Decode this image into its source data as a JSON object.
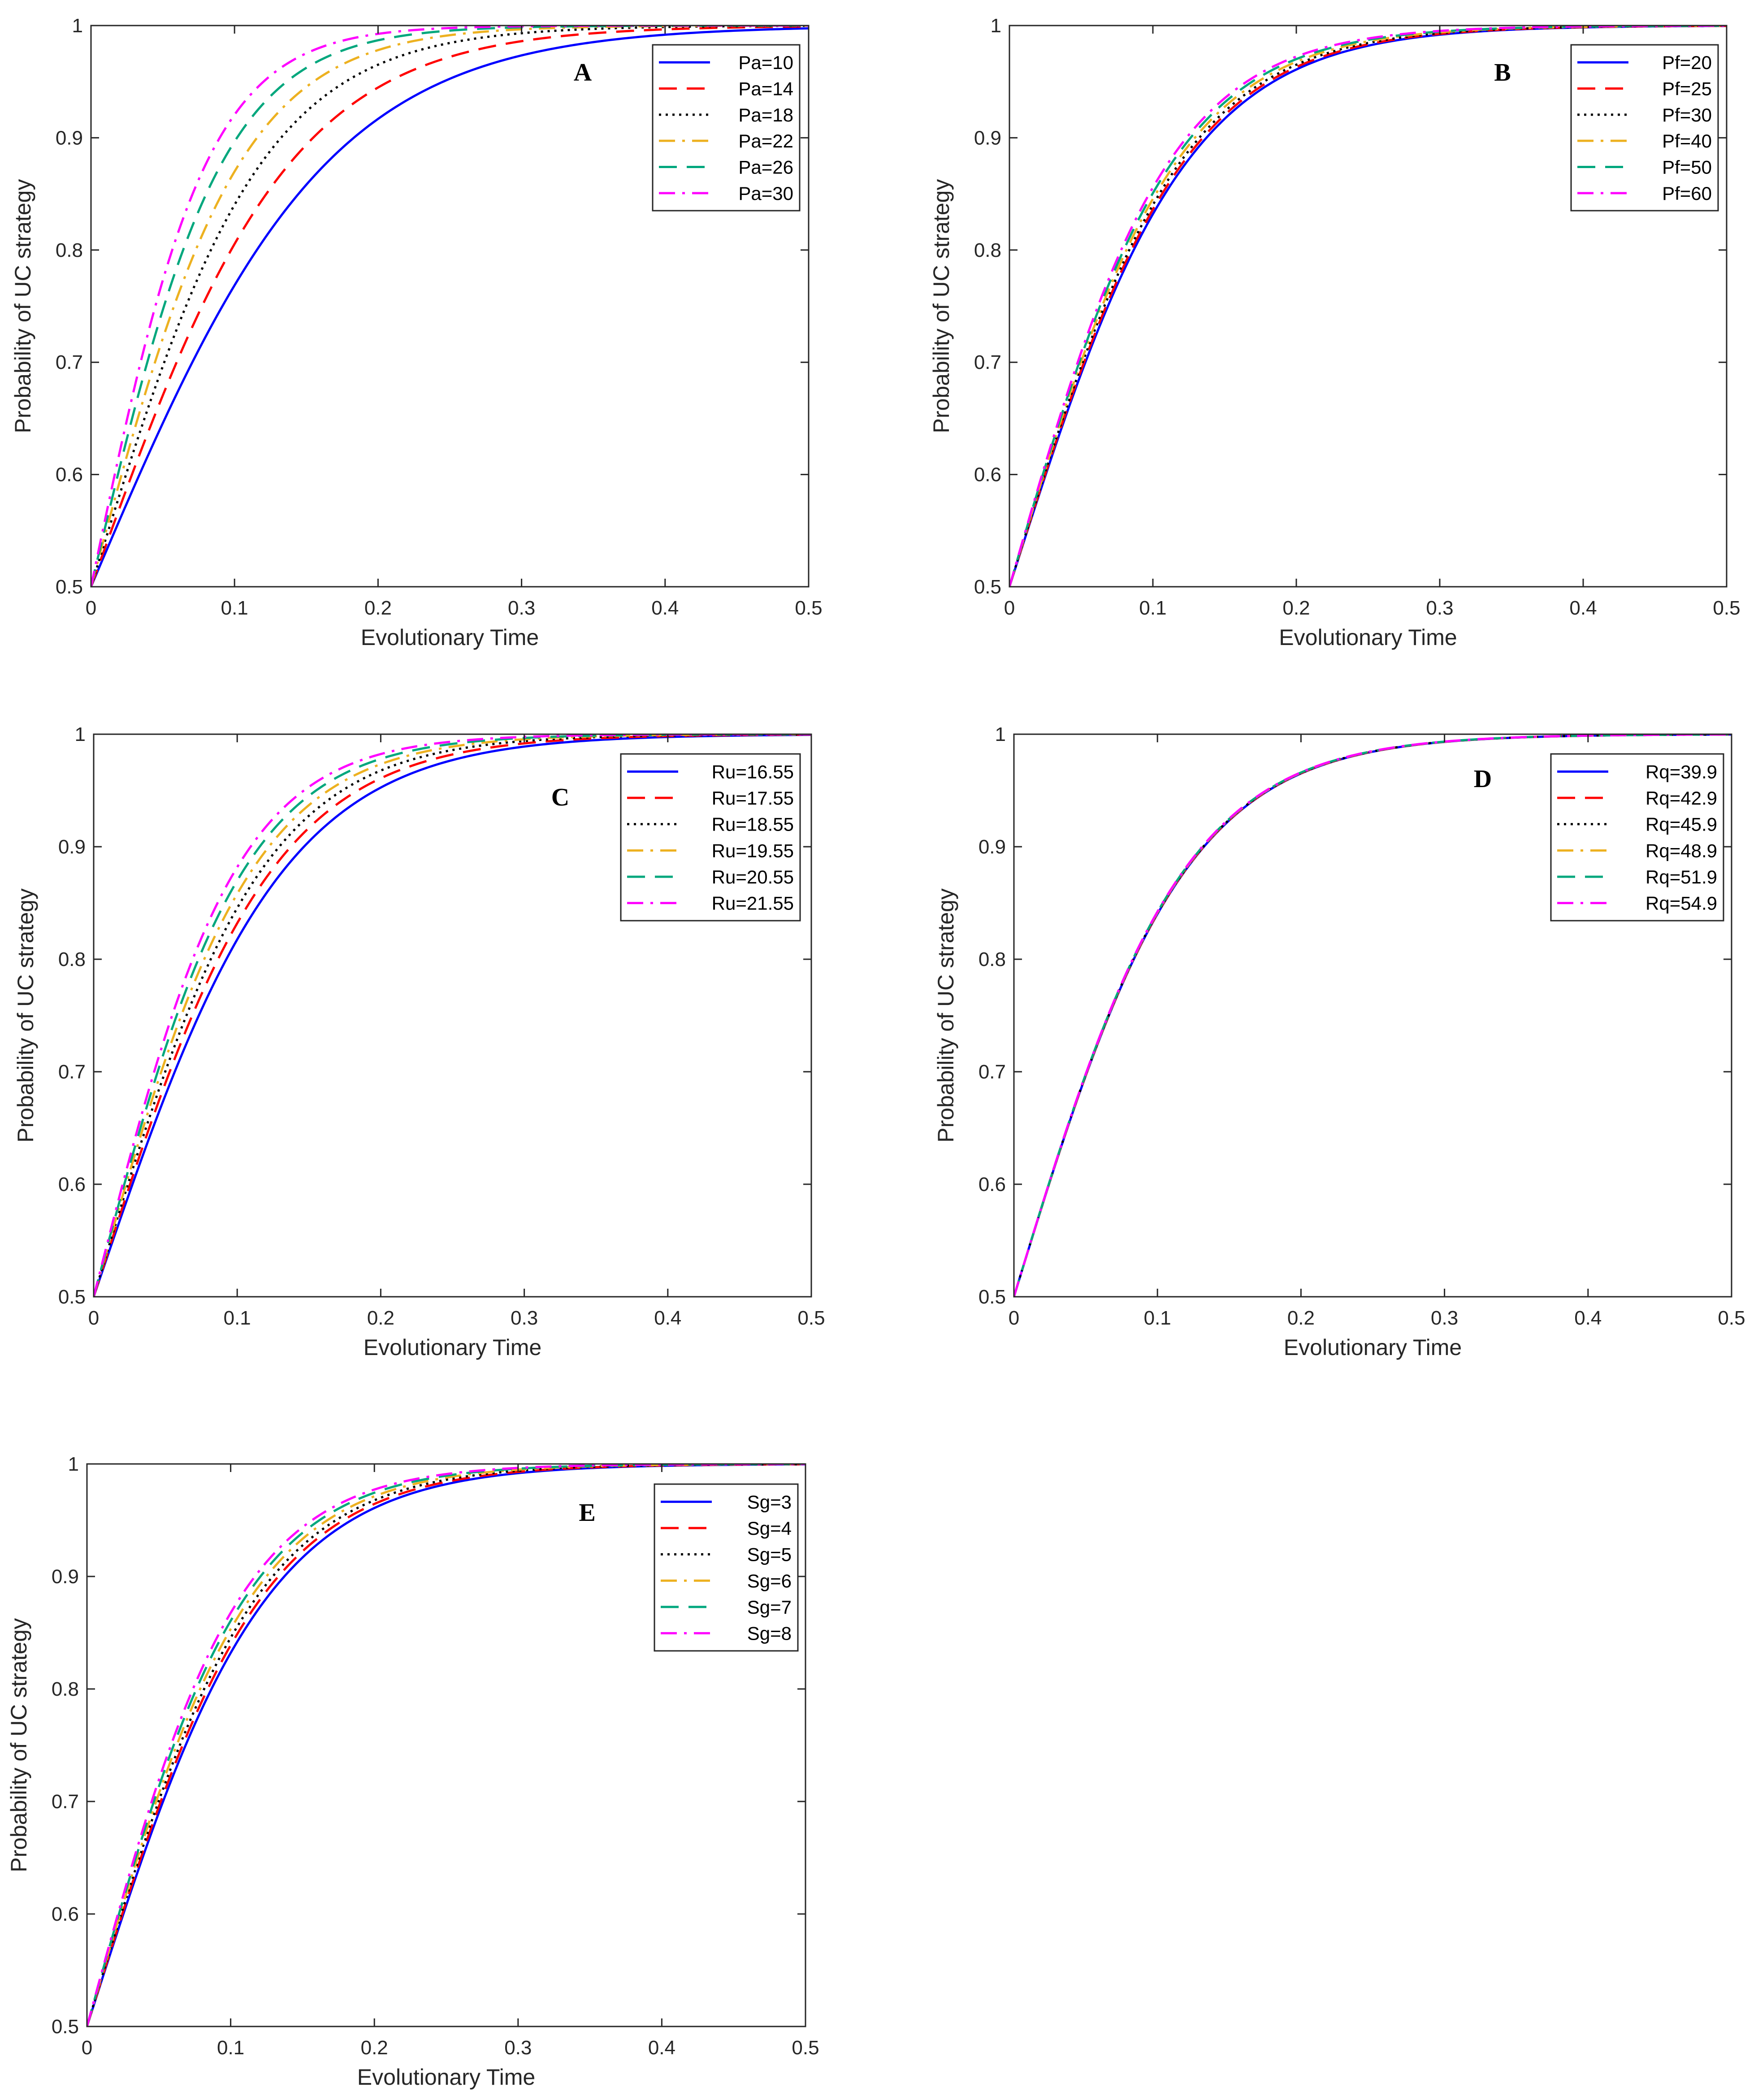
{
  "chart_data": [
    {
      "panel": "A",
      "type": "line",
      "xlabel": "Evolutionary Time",
      "ylabel": "Probability of UC strategy",
      "xlim": [
        0,
        0.5
      ],
      "ylim": [
        0.5,
        1
      ],
      "xticks": [
        "0",
        "0.1",
        "0.2",
        "0.3",
        "0.4",
        "0.5"
      ],
      "yticks": [
        "0.5",
        "0.6",
        "0.7",
        "0.8",
        "0.9",
        "1"
      ],
      "legend_position": "top-right",
      "series": [
        {
          "name": "Pa=10",
          "rate": 12.0
        },
        {
          "name": "Pa=14",
          "rate": 14.2
        },
        {
          "name": "Pa=18",
          "rate": 16.6
        },
        {
          "name": "Pa=22",
          "rate": 19.0
        },
        {
          "name": "Pa=26",
          "rate": 21.6
        },
        {
          "name": "Pa=30",
          "rate": 24.5
        }
      ]
    },
    {
      "panel": "B",
      "type": "line",
      "xlabel": "Evolutionary Time",
      "ylabel": "Probability of UC strategy",
      "xlim": [
        0,
        0.5
      ],
      "ylim": [
        0.5,
        1
      ],
      "xticks": [
        "0",
        "0.1",
        "0.2",
        "0.3",
        "0.4",
        "0.5"
      ],
      "yticks": [
        "0.5",
        "0.6",
        "0.7",
        "0.8",
        "0.9",
        "1"
      ],
      "legend_position": "top-right",
      "series": [
        {
          "name": "Pf=20",
          "rate": 16.0
        },
        {
          "name": "Pf=25",
          "rate": 16.3
        },
        {
          "name": "Pf=30",
          "rate": 16.6
        },
        {
          "name": "Pf=40",
          "rate": 17.0
        },
        {
          "name": "Pf=50",
          "rate": 17.4
        },
        {
          "name": "Pf=60",
          "rate": 17.8
        }
      ]
    },
    {
      "panel": "C",
      "type": "line",
      "xlabel": "Evolutionary Time",
      "ylabel": "Probability of UC strategy",
      "xlim": [
        0,
        0.5
      ],
      "ylim": [
        0.5,
        1
      ],
      "xticks": [
        "0",
        "0.1",
        "0.2",
        "0.3",
        "0.4",
        "0.5"
      ],
      "yticks": [
        "0.5",
        "0.6",
        "0.7",
        "0.8",
        "0.9",
        "1"
      ],
      "legend_position": "top-right",
      "series": [
        {
          "name": "Ru=16.55",
          "rate": 15.0
        },
        {
          "name": "Ru=17.55",
          "rate": 16.0
        },
        {
          "name": "Ru=18.55",
          "rate": 17.0
        },
        {
          "name": "Ru=19.55",
          "rate": 18.0
        },
        {
          "name": "Ru=20.55",
          "rate": 19.0
        },
        {
          "name": "Ru=21.55",
          "rate": 20.1
        }
      ]
    },
    {
      "panel": "D",
      "type": "line",
      "xlabel": "Evolutionary Time",
      "ylabel": "Probability of UC strategy",
      "xlim": [
        0,
        0.5
      ],
      "ylim": [
        0.5,
        1
      ],
      "xticks": [
        "0",
        "0.1",
        "0.2",
        "0.3",
        "0.4",
        "0.5"
      ],
      "yticks": [
        "0.5",
        "0.6",
        "0.7",
        "0.8",
        "0.9",
        "1"
      ],
      "legend_position": "top-right",
      "series": [
        {
          "name": "Rq=39.9",
          "rate": 16.6
        },
        {
          "name": "Rq=42.9",
          "rate": 16.63
        },
        {
          "name": "Rq=45.9",
          "rate": 16.66
        },
        {
          "name": "Rq=48.9",
          "rate": 16.69
        },
        {
          "name": "Rq=51.9",
          "rate": 16.72
        },
        {
          "name": "Rq=54.9",
          "rate": 16.75
        }
      ]
    },
    {
      "panel": "E",
      "type": "line",
      "xlabel": "Evolutionary Time",
      "ylabel": "Probability of UC strategy",
      "xlim": [
        0,
        0.5
      ],
      "ylim": [
        0.5,
        1
      ],
      "xticks": [
        "0",
        "0.1",
        "0.2",
        "0.3",
        "0.4",
        "0.5"
      ],
      "yticks": [
        "0.5",
        "0.6",
        "0.7",
        "0.8",
        "0.9",
        "1"
      ],
      "legend_position": "top-right",
      "series": [
        {
          "name": "Sg=3",
          "rate": 16.0
        },
        {
          "name": "Sg=4",
          "rate": 16.5
        },
        {
          "name": "Sg=5",
          "rate": 17.0
        },
        {
          "name": "Sg=6",
          "rate": 17.6
        },
        {
          "name": "Sg=7",
          "rate": 18.2
        },
        {
          "name": "Sg=8",
          "rate": 18.8
        }
      ]
    }
  ],
  "series_styles": [
    {
      "color": "#0000ff",
      "dash": "solid"
    },
    {
      "color": "#ff0000",
      "dash": "dashed"
    },
    {
      "color": "#000000",
      "dash": "dotted"
    },
    {
      "color": "#edb120",
      "dash": "dashdot"
    },
    {
      "color": "#00a77d",
      "dash": "dashed"
    },
    {
      "color": "#ff00ff",
      "dash": "dashdot"
    }
  ]
}
